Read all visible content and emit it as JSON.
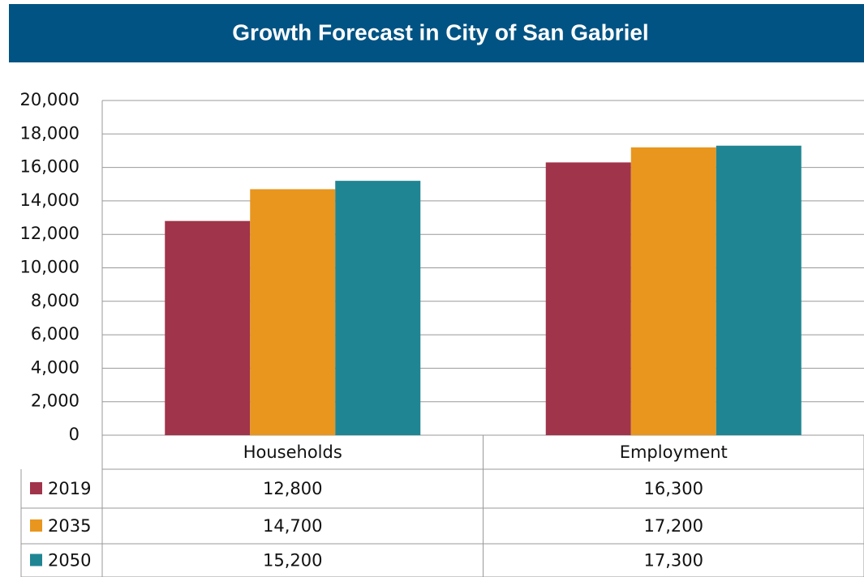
{
  "chart_data": {
    "type": "bar",
    "title": "Growth Forecast in City of San Gabriel",
    "categories": [
      "Households",
      "Employment"
    ],
    "series": [
      {
        "name": "2019",
        "color": "#a0344a",
        "values": [
          12800,
          16300
        ],
        "value_labels": [
          "12,800",
          "16,300"
        ]
      },
      {
        "name": "2035",
        "color": "#e8961e",
        "values": [
          14700,
          17200
        ],
        "value_labels": [
          "14,700",
          "17,200"
        ]
      },
      {
        "name": "2050",
        "color": "#1f8593",
        "values": [
          15200,
          17300
        ],
        "value_labels": [
          "15,200",
          "17,300"
        ]
      }
    ],
    "ylim": [
      0,
      20000
    ],
    "yticks": [
      0,
      {
        "value": 2000,
        "label": "2,000"
      },
      {
        "value": 4000,
        "label": "4,000"
      },
      {
        "value": 6000,
        "label": "6,000"
      },
      {
        "value": 8000,
        "label": "8,000"
      },
      {
        "value": 10000,
        "label": "10,000"
      },
      {
        "value": 12000,
        "label": "12,000"
      },
      {
        "value": 14000,
        "label": "14,000"
      },
      {
        "value": 16000,
        "label": "16,000"
      },
      {
        "value": 18000,
        "label": "18,000"
      },
      {
        "value": 20000,
        "label": "20,000"
      }
    ],
    "grid": true
  }
}
